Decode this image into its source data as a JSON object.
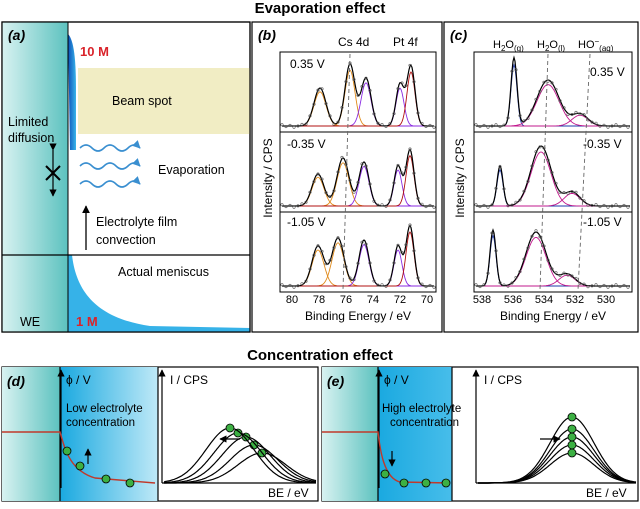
{
  "titles": {
    "evaporation": "Evaporation effect",
    "concentration": "Concentration effect"
  },
  "panel_a": {
    "label": "(a)",
    "conc_high": "10 M",
    "conc_low": "1 M",
    "beam_spot": "Beam spot",
    "limited_diffusion": [
      "Limited",
      "diffusion"
    ],
    "evaporation": "Evaporation",
    "film_convection": [
      "Electrolyte film",
      "convection"
    ],
    "actual_meniscus": "Actual meniscus",
    "we": "WE"
  },
  "panel_b": {
    "label": "(b)",
    "peak_labels": [
      "Cs 4d",
      "Pt 4f"
    ],
    "potentials": [
      "0.35 V",
      "-0.35 V",
      "-1.05 V"
    ],
    "ylabel": "Intensity / CPS",
    "xlabel": "Binding Energy / eV",
    "x_ticks": [
      "80",
      "78",
      "76",
      "74",
      "72",
      "70"
    ]
  },
  "panel_c": {
    "label": "(c)",
    "peak_labels": [
      "H2O(g)",
      "H2O(l)",
      "HO−(aq)"
    ],
    "potentials": [
      "0.35 V",
      "-0.35 V",
      "-1.05 V"
    ],
    "ylabel": "Intensity / CPS",
    "xlabel": "Binding Energy / eV",
    "x_ticks": [
      "538",
      "536",
      "534",
      "532",
      "530"
    ]
  },
  "panel_d": {
    "label": "(d)",
    "phi_label": "ϕ / V",
    "concentration_text": [
      "Low electrolyte",
      "concentration"
    ],
    "cps_label": "I / CPS",
    "be_label": "BE / eV"
  },
  "panel_e": {
    "label": "(e)",
    "phi_label": "ϕ / V",
    "concentration_text": [
      "High electrolyte",
      "concentration"
    ],
    "cps_label": "I / CPS",
    "be_label": "BE / eV"
  },
  "colors": {
    "electrode_teal": "#5ec4c0",
    "electrolyte_blue": "#1ab1e6",
    "beam_spot": "#f1edc4",
    "red_label": "#d9232a",
    "green_dot": "#3cb043",
    "fit_orange": "#e08a1a",
    "fit_purple": "#8a2be2",
    "fit_red": "#b01010"
  }
}
